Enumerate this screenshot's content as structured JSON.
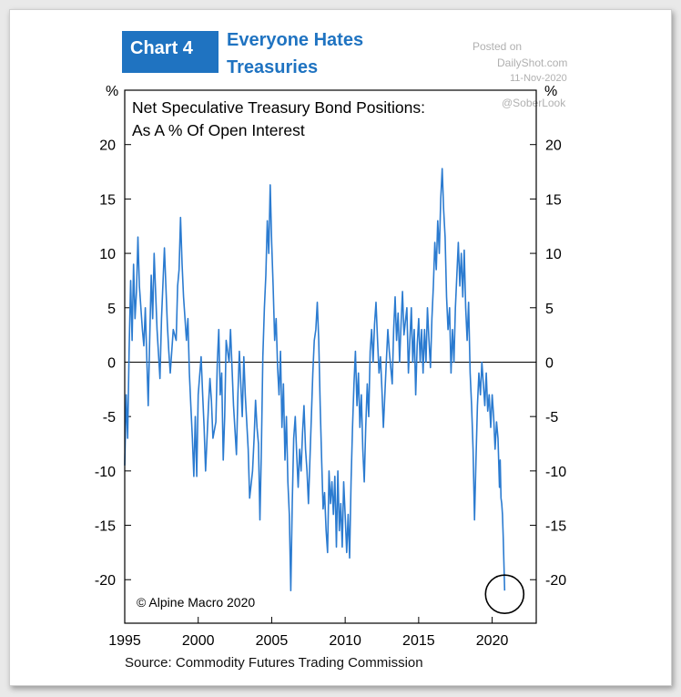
{
  "header": {
    "badge": "Chart 4",
    "headline_line1": "Everyone Hates",
    "headline_line2": "Treasuries"
  },
  "watermark": {
    "line1": "Posted on",
    "line2": "DailyShot.com",
    "line3": "11-Nov-2020",
    "line4": "@SoberLook"
  },
  "colors": {
    "accent": "#1f73c1",
    "series": "#2b7bd0"
  },
  "chart_data": {
    "type": "line",
    "title": "Net Speculative Treasury Bond Positions:",
    "subtitle": "As A % Of Open Interest",
    "ylabel_left": "%",
    "ylabel_right": "%",
    "ylim": [
      -24,
      25
    ],
    "xlim": [
      1995,
      2023
    ],
    "yticks": [
      20,
      15,
      10,
      5,
      0,
      -5,
      -10,
      -15,
      -20
    ],
    "xticks": [
      1995,
      2000,
      2005,
      2010,
      2015,
      2020
    ],
    "copyright": "© Alpine Macro 2020",
    "source": "Source: Commodity Futures Trading Commission",
    "annotation": "circle around latest value",
    "series": [
      {
        "values": [
          [
            1995.0,
            -9.5
          ],
          [
            1995.1,
            -3.0
          ],
          [
            1995.2,
            -7.0
          ],
          [
            1995.3,
            1.0
          ],
          [
            1995.4,
            7.5
          ],
          [
            1995.5,
            2.0
          ],
          [
            1995.6,
            9.0
          ],
          [
            1995.7,
            4.0
          ],
          [
            1995.8,
            6.5
          ],
          [
            1995.9,
            11.5
          ],
          [
            1996.0,
            7.0
          ],
          [
            1996.2,
            3.0
          ],
          [
            1996.3,
            1.5
          ],
          [
            1996.4,
            5.0
          ],
          [
            1996.5,
            0.5
          ],
          [
            1996.6,
            -4.0
          ],
          [
            1996.7,
            2.0
          ],
          [
            1996.8,
            8.0
          ],
          [
            1996.9,
            4.0
          ],
          [
            1997.0,
            10.0
          ],
          [
            1997.2,
            3.0
          ],
          [
            1997.4,
            -1.5
          ],
          [
            1997.5,
            4.0
          ],
          [
            1997.7,
            10.5
          ],
          [
            1997.8,
            7.0
          ],
          [
            1997.9,
            3.5
          ],
          [
            1998.0,
            1.0
          ],
          [
            1998.1,
            -1.0
          ],
          [
            1998.3,
            3.0
          ],
          [
            1998.5,
            2.0
          ],
          [
            1998.6,
            7.0
          ],
          [
            1998.7,
            8.5
          ],
          [
            1998.8,
            13.3
          ],
          [
            1998.9,
            9.0
          ],
          [
            1999.0,
            6.0
          ],
          [
            1999.2,
            2.0
          ],
          [
            1999.3,
            4.0
          ],
          [
            1999.4,
            -1.0
          ],
          [
            1999.5,
            -4.0
          ],
          [
            1999.6,
            -7.0
          ],
          [
            1999.7,
            -10.5
          ],
          [
            1999.8,
            -5.0
          ],
          [
            1999.9,
            -10.5
          ],
          [
            2000.0,
            -3.0
          ],
          [
            2000.2,
            0.5
          ],
          [
            2000.3,
            -3.0
          ],
          [
            2000.4,
            -6.0
          ],
          [
            2000.5,
            -10.0
          ],
          [
            2000.7,
            -4.0
          ],
          [
            2000.8,
            -1.5
          ],
          [
            2000.9,
            -3.5
          ],
          [
            2001.0,
            -7.0
          ],
          [
            2001.2,
            -5.5
          ],
          [
            2001.3,
            0.0
          ],
          [
            2001.4,
            3.0
          ],
          [
            2001.5,
            -3.0
          ],
          [
            2001.6,
            -1.0
          ],
          [
            2001.7,
            -9.0
          ],
          [
            2001.8,
            -5.0
          ],
          [
            2001.9,
            2.0
          ],
          [
            2002.1,
            0.0
          ],
          [
            2002.2,
            3.0
          ],
          [
            2002.4,
            -4.0
          ],
          [
            2002.6,
            -8.5
          ],
          [
            2002.7,
            -3.0
          ],
          [
            2002.8,
            1.0
          ],
          [
            2002.9,
            -2.0
          ],
          [
            2003.0,
            -5.0
          ],
          [
            2003.1,
            0.5
          ],
          [
            2003.2,
            -3.0
          ],
          [
            2003.4,
            -8.0
          ],
          [
            2003.5,
            -12.5
          ],
          [
            2003.7,
            -10.0
          ],
          [
            2003.8,
            -7.0
          ],
          [
            2003.9,
            -3.5
          ],
          [
            2004.0,
            -6.0
          ],
          [
            2004.1,
            -7.5
          ],
          [
            2004.2,
            -14.5
          ],
          [
            2004.3,
            -8.0
          ],
          [
            2004.4,
            0.5
          ],
          [
            2004.5,
            5.0
          ],
          [
            2004.6,
            8.0
          ],
          [
            2004.7,
            13.0
          ],
          [
            2004.8,
            10.0
          ],
          [
            2004.9,
            16.3
          ],
          [
            2005.0,
            11.0
          ],
          [
            2005.1,
            7.0
          ],
          [
            2005.2,
            2.0
          ],
          [
            2005.3,
            4.0
          ],
          [
            2005.4,
            -0.5
          ],
          [
            2005.5,
            -3.0
          ],
          [
            2005.6,
            1.0
          ],
          [
            2005.7,
            -6.0
          ],
          [
            2005.8,
            -2.0
          ],
          [
            2005.9,
            -9.0
          ],
          [
            2006.0,
            -5.0
          ],
          [
            2006.1,
            -11.0
          ],
          [
            2006.2,
            -14.0
          ],
          [
            2006.3,
            -21.0
          ],
          [
            2006.4,
            -13.0
          ],
          [
            2006.5,
            -7.0
          ],
          [
            2006.6,
            -5.0
          ],
          [
            2006.7,
            -8.5
          ],
          [
            2006.8,
            -11.5
          ],
          [
            2006.9,
            -8.0
          ],
          [
            2007.0,
            -10.0
          ],
          [
            2007.1,
            -6.5
          ],
          [
            2007.2,
            -4.0
          ],
          [
            2007.3,
            -8.0
          ],
          [
            2007.4,
            -10.0
          ],
          [
            2007.5,
            -13.0
          ],
          [
            2007.6,
            -9.0
          ],
          [
            2007.7,
            -5.0
          ],
          [
            2007.8,
            -1.0
          ],
          [
            2007.9,
            2.0
          ],
          [
            2008.0,
            3.0
          ],
          [
            2008.1,
            5.5
          ],
          [
            2008.2,
            2.0
          ],
          [
            2008.3,
            -4.0
          ],
          [
            2008.4,
            -9.0
          ],
          [
            2008.5,
            -13.5
          ],
          [
            2008.6,
            -12.0
          ],
          [
            2008.7,
            -15.5
          ],
          [
            2008.8,
            -17.5
          ],
          [
            2008.9,
            -10.0
          ],
          [
            2009.0,
            -13.0
          ],
          [
            2009.1,
            -11.0
          ],
          [
            2009.2,
            -14.0
          ],
          [
            2009.3,
            -10.5
          ],
          [
            2009.4,
            -17.0
          ],
          [
            2009.5,
            -10.0
          ],
          [
            2009.6,
            -15.5
          ],
          [
            2009.7,
            -13.0
          ],
          [
            2009.8,
            -17.0
          ],
          [
            2009.9,
            -11.0
          ],
          [
            2010.0,
            -14.0
          ],
          [
            2010.1,
            -17.5
          ],
          [
            2010.2,
            -14.0
          ],
          [
            2010.3,
            -18.0
          ],
          [
            2010.4,
            -11.0
          ],
          [
            2010.5,
            -6.0
          ],
          [
            2010.6,
            -2.0
          ],
          [
            2010.7,
            1.0
          ],
          [
            2010.8,
            -4.0
          ],
          [
            2010.9,
            -1.0
          ],
          [
            2011.0,
            -6.0
          ],
          [
            2011.1,
            -3.0
          ],
          [
            2011.2,
            -8.0
          ],
          [
            2011.3,
            -11.0
          ],
          [
            2011.4,
            -6.0
          ],
          [
            2011.5,
            -2.0
          ],
          [
            2011.6,
            -5.0
          ],
          [
            2011.7,
            1.0
          ],
          [
            2011.8,
            3.0
          ],
          [
            2011.9,
            0.0
          ],
          [
            2012.0,
            3.5
          ],
          [
            2012.1,
            5.5
          ],
          [
            2012.2,
            2.0
          ],
          [
            2012.3,
            -1.0
          ],
          [
            2012.4,
            0.5
          ],
          [
            2012.5,
            -2.5
          ],
          [
            2012.6,
            -6.0
          ],
          [
            2012.7,
            -3.0
          ],
          [
            2012.8,
            0.0
          ],
          [
            2012.9,
            3.0
          ],
          [
            2013.0,
            1.0
          ],
          [
            2013.2,
            -2.0
          ],
          [
            2013.3,
            3.0
          ],
          [
            2013.4,
            6.0
          ],
          [
            2013.5,
            2.0
          ],
          [
            2013.6,
            4.5
          ],
          [
            2013.7,
            0.0
          ],
          [
            2013.8,
            3.5
          ],
          [
            2013.9,
            6.5
          ],
          [
            2014.0,
            2.5
          ],
          [
            2014.2,
            5.0
          ],
          [
            2014.3,
            -1.0
          ],
          [
            2014.4,
            2.0
          ],
          [
            2014.5,
            5.0
          ],
          [
            2014.6,
            0.0
          ],
          [
            2014.7,
            3.0
          ],
          [
            2014.8,
            -3.0
          ],
          [
            2014.9,
            1.5
          ],
          [
            2015.0,
            4.0
          ],
          [
            2015.1,
            0.0
          ],
          [
            2015.2,
            3.0
          ],
          [
            2015.3,
            -1.0
          ],
          [
            2015.4,
            3.0
          ],
          [
            2015.5,
            0.0
          ],
          [
            2015.6,
            5.0
          ],
          [
            2015.7,
            2.0
          ],
          [
            2015.8,
            -0.5
          ],
          [
            2015.9,
            4.0
          ],
          [
            2016.0,
            7.0
          ],
          [
            2016.1,
            11.0
          ],
          [
            2016.2,
            8.5
          ],
          [
            2016.3,
            13.0
          ],
          [
            2016.4,
            10.0
          ],
          [
            2016.5,
            15.0
          ],
          [
            2016.6,
            17.8
          ],
          [
            2016.7,
            14.0
          ],
          [
            2016.8,
            11.5
          ],
          [
            2016.9,
            6.0
          ],
          [
            2017.0,
            3.0
          ],
          [
            2017.1,
            5.0
          ],
          [
            2017.2,
            -1.0
          ],
          [
            2017.3,
            3.0
          ],
          [
            2017.4,
            0.0
          ],
          [
            2017.5,
            5.0
          ],
          [
            2017.6,
            8.0
          ],
          [
            2017.7,
            11.0
          ],
          [
            2017.8,
            7.0
          ],
          [
            2017.9,
            10.0
          ],
          [
            2018.0,
            6.0
          ],
          [
            2018.1,
            10.3
          ],
          [
            2018.2,
            5.0
          ],
          [
            2018.3,
            2.0
          ],
          [
            2018.4,
            5.5
          ],
          [
            2018.5,
            -1.0
          ],
          [
            2018.6,
            -4.0
          ],
          [
            2018.7,
            -8.0
          ],
          [
            2018.8,
            -14.5
          ],
          [
            2018.9,
            -9.0
          ],
          [
            2019.0,
            -4.0
          ],
          [
            2019.1,
            -1.0
          ],
          [
            2019.2,
            -3.0
          ],
          [
            2019.3,
            0.0
          ],
          [
            2019.4,
            -2.0
          ],
          [
            2019.5,
            -4.0
          ],
          [
            2019.6,
            -1.0
          ],
          [
            2019.7,
            -4.5
          ],
          [
            2019.8,
            -3.0
          ],
          [
            2019.9,
            -6.0
          ],
          [
            2020.0,
            -3.0
          ],
          [
            2020.1,
            -5.0
          ],
          [
            2020.2,
            -8.0
          ],
          [
            2020.3,
            -5.5
          ],
          [
            2020.4,
            -7.0
          ],
          [
            2020.5,
            -11.5
          ],
          [
            2020.55,
            -9.0
          ],
          [
            2020.6,
            -12.5
          ],
          [
            2020.65,
            -13.0
          ],
          [
            2020.7,
            -14.0
          ],
          [
            2020.75,
            -16.0
          ],
          [
            2020.8,
            -18.5
          ],
          [
            2020.85,
            -21.0
          ]
        ]
      }
    ]
  }
}
